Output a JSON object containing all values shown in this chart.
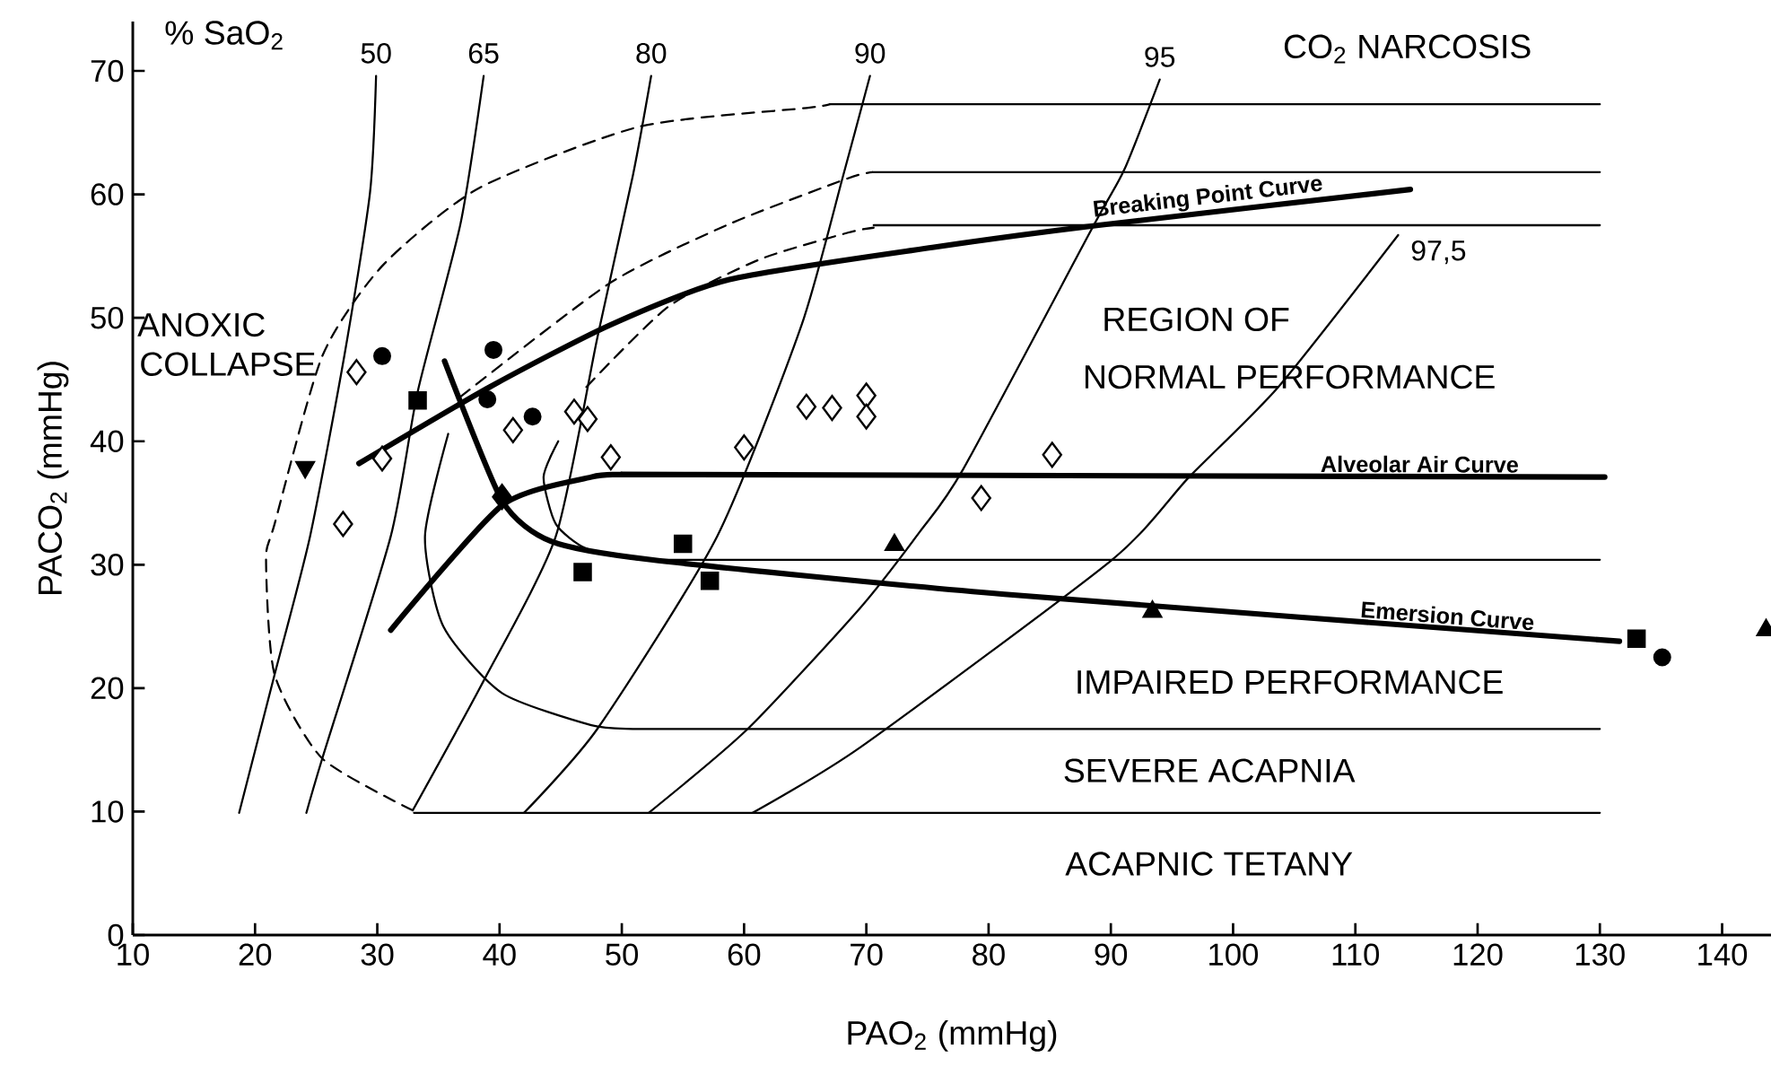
{
  "chart_data": {
    "type": "line",
    "xlabel": "PAO$_{2}$ (mmHg)",
    "ylabel": "PACO$_{2}$ (mmHg)",
    "xlim": [
      10,
      144
    ],
    "ylim": [
      0,
      74
    ],
    "xticks": [
      10,
      20,
      30,
      40,
      50,
      60,
      70,
      80,
      90,
      100,
      110,
      120,
      130,
      140
    ],
    "yticks": [
      0,
      10,
      20,
      30,
      40,
      50,
      60,
      70
    ],
    "grid": false,
    "series": [
      {
        "name": "50",
        "color": "#000000",
        "x": [
          18.7,
          21.6,
          24.5,
          27.3,
          29.4,
          29.9
        ],
        "values": [
          9.9,
          21.1,
          32.3,
          46.9,
          60.1,
          69.6
        ]
      },
      {
        "name": "65",
        "color": "#000000",
        "x": [
          24.2,
          25.5,
          31.1,
          33.3,
          36.8,
          38.7
        ],
        "values": [
          9.9,
          14.3,
          32.3,
          44,
          57.6,
          69.6
        ]
      },
      {
        "name": "80",
        "color": "#000000",
        "x": [
          32.9,
          38.7,
          44.6,
          48.0,
          50.9,
          52.4
        ],
        "values": [
          10.1,
          20.6,
          32.3,
          48.4,
          61.5,
          69.6
        ]
      },
      {
        "name": "90",
        "color": "#000000",
        "x": [
          42,
          48,
          57.8,
          64.7,
          68.1,
          70.3
        ],
        "values": [
          9.9,
          16.7,
          32.3,
          49.4,
          61.5,
          69.6
        ]
      },
      {
        "name": "95",
        "color": "#000000",
        "x": [
          52.2,
          60.3,
          69.5,
          74.4,
          77.9,
          88.6,
          91.1,
          94.0
        ],
        "values": [
          9.9,
          16.7,
          26.5,
          32.7,
          37.7,
          57.5,
          62,
          69.3
        ]
      },
      {
        "name": "97,5",
        "color": "#000000",
        "x": [
          60.7,
          69.5,
          90.1,
          96.4,
          103.7,
          113.5
        ],
        "values": [
          9.9,
          15.2,
          30.4,
          37.1,
          44.4,
          56.7
        ]
      },
      {
        "line_style": "dashed",
        "color": "#000000",
        "x": [
          32.9,
          25.5,
          21.6,
          20.9,
          21.6,
          25.5,
          30.4,
          38.3,
          51.5,
          65.1,
          67
        ],
        "values": [
          10.1,
          14.3,
          21.1,
          30.4,
          33.3,
          46.9,
          54.2,
          60.5,
          65.5,
          67.0,
          67.3
        ]
      },
      {
        "line_style": "dashed",
        "color": "#000000",
        "x": [
          36.8,
          49,
          58.8,
          68.5,
          70.5
        ],
        "values": [
          43.6,
          52.8,
          57.6,
          61.3,
          61.8
        ]
      },
      {
        "line_style": "dashed",
        "color": "#000000",
        "x": [
          47.1,
          53.8,
          61.2,
          68.5,
          70.6
        ],
        "values": [
          44.4,
          50.9,
          54.7,
          56.9,
          57.3
        ]
      },
      {
        "color": "#000000",
        "x": [
          67,
          130
        ],
        "values": [
          67.3,
          67.3
        ]
      },
      {
        "color": "#000000",
        "x": [
          70.5,
          130
        ],
        "values": [
          61.8,
          61.8
        ]
      },
      {
        "color": "#000000",
        "x": [
          70.6,
          130
        ],
        "values": [
          57.5,
          57.5
        ]
      },
      {
        "color": "#000000",
        "x": [
          44.8,
          43.6,
          44.6,
          47.1,
          51.5
        ],
        "values": [
          40.0,
          37.1,
          33.3,
          31.3,
          30.4
        ]
      },
      {
        "color": "#000000",
        "x": [
          51.5,
          130
        ],
        "values": [
          30.4,
          30.4
        ]
      },
      {
        "color": "#000000",
        "x": [
          35.8,
          33.9,
          35.4,
          40.2,
          47.5,
          50.9,
          56,
          130
        ],
        "values": [
          40.6,
          32.3,
          25,
          19.6,
          17,
          16.7,
          16.7,
          16.7
        ]
      },
      {
        "color": "#000000",
        "x": [
          33,
          130
        ],
        "values": [
          9.9,
          9.9
        ]
      },
      {
        "name": "Breaking Point Curve",
        "color": "#000000",
        "x": [
          28.5,
          39.2,
          49,
          58.8,
          75.4,
          89,
          114.5
        ],
        "values": [
          38.2,
          44.4,
          49.4,
          53.1,
          55.7,
          57.5,
          60.4
        ]
      },
      {
        "name": "Alveolar Air Curve",
        "color": "#000000",
        "x": [
          31.1,
          40.2,
          47.5,
          50,
          56,
          130.4
        ],
        "values": [
          24.7,
          34.8,
          37.1,
          37.3,
          37.3,
          37.1
        ]
      },
      {
        "name": "Emersion Curve",
        "color": "#000000",
        "x": [
          35.5,
          40.2,
          44.2,
          52.4,
          81.3,
          131.6
        ],
        "values": [
          46.5,
          35.2,
          31.9,
          30.4,
          27.6,
          23.8
        ]
      },
      {
        "type": "scatter",
        "marker": "circle",
        "color": "#000000",
        "x": [
          30.4,
          39.5,
          39,
          42.7,
          135.1
        ],
        "values": [
          46.9,
          47.4,
          43.4,
          42.0,
          22.5
        ]
      },
      {
        "type": "scatter",
        "marker": "square",
        "color": "#000000",
        "x": [
          33.3,
          46.8,
          55,
          57.2,
          133
        ],
        "values": [
          43.3,
          29.4,
          31.7,
          28.7,
          24.0
        ]
      },
      {
        "type": "scatter",
        "marker": "diamond",
        "color": "#000000",
        "x": [
          40.2
        ],
        "values": [
          35.5
        ]
      },
      {
        "type": "scatter",
        "marker": "triangle",
        "color": "#000000",
        "x": [
          72.3,
          93.4,
          143.6
        ],
        "values": [
          31.6,
          26.2,
          24.7
        ]
      },
      {
        "type": "scatter",
        "marker": "triangle_down",
        "color": "#000000",
        "x": [
          24.1
        ],
        "values": [
          37.9
        ]
      },
      {
        "type": "scatter",
        "marker": "diamond",
        "color": "#ffffff",
        "x": [
          28.3,
          30.4,
          27.2,
          41.1,
          46.1,
          47.2,
          49.1,
          60,
          65.1,
          67.2,
          70,
          70,
          85.2,
          79.4
        ],
        "values": [
          45.6,
          38.6,
          33.3,
          40.9,
          42.4,
          41.8,
          38.7,
          39.5,
          42.8,
          42.7,
          43.7,
          42.0,
          38.9,
          35.4
        ]
      }
    ],
    "annotations": [
      "% SaO$_{2}$",
      "CO$_{2}$ NARCOSIS",
      "ANOXIC",
      "COLLAPSE",
      "REGION OF",
      "NORMAL PERFORMANCE",
      "IMPAIRED PERFORMANCE",
      "SEVERE ACAPNIA",
      "ACAPNIC TETANY"
    ]
  }
}
